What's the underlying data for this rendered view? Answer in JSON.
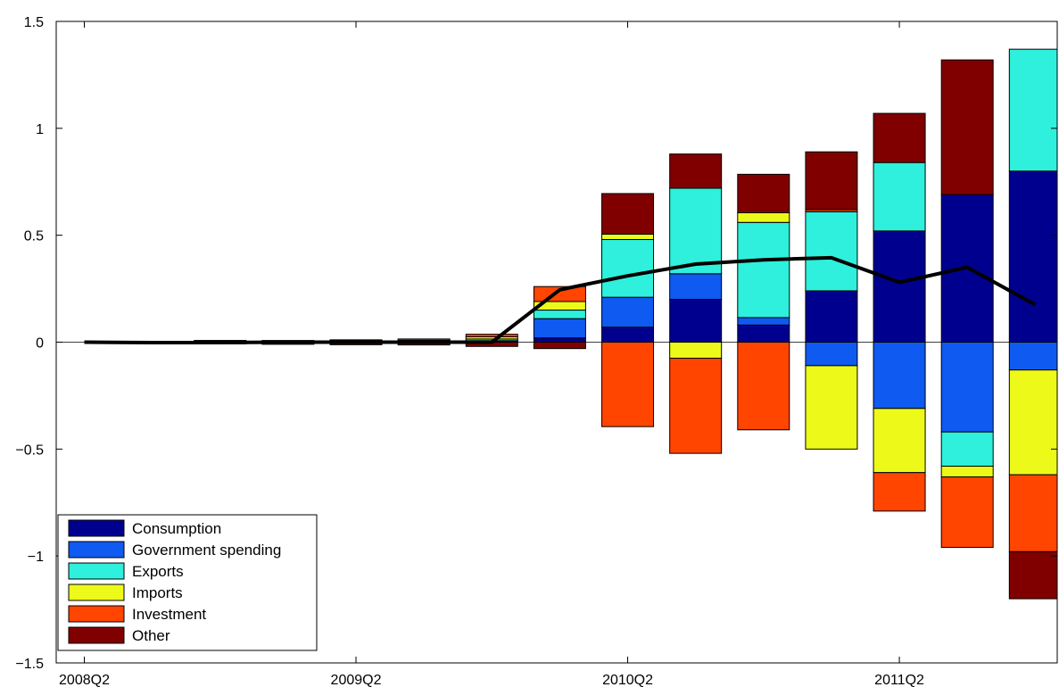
{
  "chart_data": {
    "type": "bar",
    "stacked": true,
    "categories": [
      "2008Q2",
      "2008Q3",
      "2008Q4",
      "2009Q1",
      "2009Q2",
      "2009Q3",
      "2009Q4",
      "2010Q1",
      "2010Q2",
      "2010Q3",
      "2010Q4",
      "2011Q1",
      "2011Q2",
      "2011Q3",
      "2011Q4"
    ],
    "x_tick_labels": [
      "2008Q2",
      "2009Q2",
      "2010Q2",
      "2011Q2"
    ],
    "y_tick_labels": [
      "−1.5",
      "−1",
      "−0.5",
      "0",
      "0.5",
      "1",
      "1.5"
    ],
    "y_ticks": [
      -1.5,
      -1,
      -0.5,
      0,
      0.5,
      1,
      1.5
    ],
    "ylim": [
      -1.5,
      1.5
    ],
    "title": "",
    "xlabel": "",
    "ylabel": "",
    "grid": false,
    "legend_position": "bottom-left",
    "series": [
      {
        "name": "Consumption",
        "color": "#00008F",
        "values": [
          0.0,
          0.001,
          0.002,
          0.0,
          0.0,
          0.0,
          0.002,
          0.02,
          0.07,
          0.2,
          0.08,
          0.24,
          0.52,
          0.69,
          0.8
        ]
      },
      {
        "name": "Government spending",
        "color": "#0F5AF0",
        "values": [
          0.0,
          0.001,
          0.002,
          0.002,
          0.002,
          0.003,
          0.005,
          0.09,
          0.14,
          0.12,
          0.035,
          -0.11,
          -0.31,
          -0.42,
          -0.13
        ]
      },
      {
        "name": "Exports",
        "color": "#2EF0DC",
        "values": [
          0.0,
          0.001,
          0.003,
          0.004,
          0.005,
          0.006,
          0.008,
          0.04,
          0.27,
          0.4,
          0.445,
          0.37,
          0.32,
          -0.16,
          0.57
        ]
      },
      {
        "name": "Imports",
        "color": "#EDFA19",
        "values": [
          0.0,
          0.0,
          -0.001,
          -0.001,
          -0.002,
          -0.003,
          0.01,
          0.04,
          0.025,
          -0.075,
          0.045,
          -0.39,
          -0.3,
          -0.05,
          -0.49
        ]
      },
      {
        "name": "Investment",
        "color": "#FF4500",
        "values": [
          0.0,
          0.0,
          0.001,
          0.002,
          0.004,
          0.006,
          0.012,
          0.07,
          -0.395,
          -0.445,
          -0.41,
          0.01,
          -0.18,
          -0.33,
          -0.36
        ]
      },
      {
        "name": "Other",
        "color": "#800000",
        "values": [
          0.0,
          0.0,
          -0.007,
          -0.009,
          -0.01,
          -0.01,
          -0.02,
          -0.03,
          0.19,
          0.16,
          0.18,
          0.27,
          0.23,
          0.63,
          -0.22
        ]
      }
    ],
    "line": {
      "color": "#000000",
      "values": [
        0.0,
        -0.002,
        -0.002,
        0.0,
        0.0,
        0.0,
        0.0,
        0.245,
        0.31,
        0.365,
        0.385,
        0.395,
        0.28,
        0.35,
        0.175
      ]
    }
  }
}
